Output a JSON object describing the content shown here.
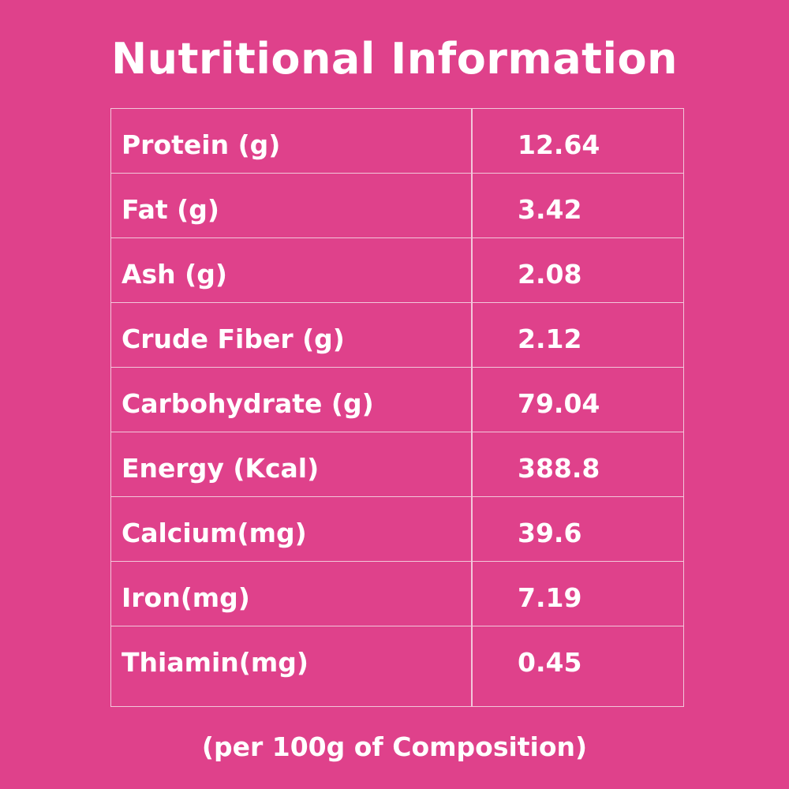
{
  "title": "Nutritional Information",
  "colors": {
    "background": "#df418b",
    "text": "#ffffff",
    "border": "#f2c6da"
  },
  "rows": [
    {
      "label": "Protein (g)",
      "value": "12.64"
    },
    {
      "label": "Fat (g)",
      "value": "3.42"
    },
    {
      "label": "Ash (g)",
      "value": "2.08"
    },
    {
      "label": "Crude Fiber (g)",
      "value": "2.12"
    },
    {
      "label": "Carbohydrate (g)",
      "value": "79.04"
    },
    {
      "label": "Energy (Kcal)",
      "value": "388.8"
    },
    {
      "label": "Calcium(mg)",
      "value": "39.6"
    },
    {
      "label": "Iron(mg)",
      "value": "7.19"
    },
    {
      "label": "Thiamin(mg)",
      "value": "0.45"
    }
  ],
  "footnote": "(per 100g of Composition)"
}
